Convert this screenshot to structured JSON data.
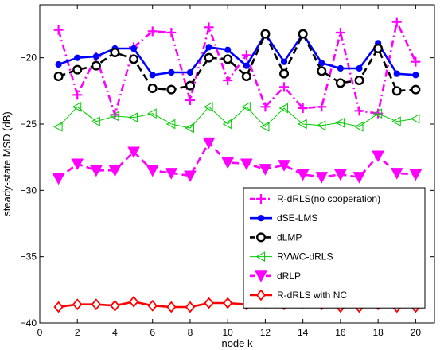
{
  "chart_data": {
    "type": "line",
    "xlabel": "node k",
    "ylabel": "steady-state MSD (dB)",
    "xlim": [
      0,
      21
    ],
    "ylim": [
      -40,
      -16
    ],
    "xticks": [
      0,
      2,
      4,
      6,
      8,
      10,
      12,
      14,
      16,
      18,
      20
    ],
    "yticks": [
      -40,
      -35,
      -30,
      -25,
      -20
    ],
    "grid": false,
    "legend_position": "bottom-right",
    "x": [
      1,
      2,
      3,
      4,
      5,
      6,
      7,
      8,
      9,
      10,
      11,
      12,
      13,
      14,
      15,
      16,
      17,
      18,
      19,
      20
    ],
    "series": [
      {
        "name": "R-dRLS(no cooperation)",
        "color": "#ff00ff",
        "line": "dashdot",
        "marker": "plus",
        "values": [
          -17.9,
          -22.8,
          -19.9,
          -24.3,
          -19.2,
          -18.0,
          -18.1,
          -23.2,
          -17.7,
          -21.7,
          -19.8,
          -23.7,
          -22.2,
          -23.8,
          -23.7,
          -18.1,
          -24.0,
          -24.2,
          -17.3,
          -20.3
        ]
      },
      {
        "name": "dSE-LMS",
        "color": "#0000ff",
        "line": "solid",
        "marker": "dot",
        "values": [
          -20.5,
          -20.0,
          -19.9,
          -19.3,
          -19.3,
          -21.3,
          -21.1,
          -21.1,
          -19.2,
          -19.4,
          -20.6,
          -18.2,
          -20.3,
          -18.2,
          -20.4,
          -20.8,
          -20.8,
          -18.9,
          -21.2,
          -21.3
        ]
      },
      {
        "name": "dLMP",
        "color": "#000000",
        "line": "dashed",
        "marker": "circle",
        "values": [
          -21.4,
          -20.9,
          -20.6,
          -19.6,
          -20.1,
          -22.3,
          -22.4,
          -22.1,
          -20.0,
          -20.1,
          -21.4,
          -18.2,
          -21.2,
          -18.2,
          -21.0,
          -21.9,
          -21.7,
          -19.3,
          -22.5,
          -22.4
        ]
      },
      {
        "name": "RVWC-dRLS",
        "color": "#00cc00",
        "line": "solid",
        "marker": "triangle-left",
        "values": [
          -25.2,
          -23.7,
          -24.8,
          -24.4,
          -24.5,
          -24.2,
          -25.0,
          -25.3,
          -23.7,
          -25.0,
          -23.7,
          -25.2,
          -23.8,
          -25.0,
          -25.1,
          -24.9,
          -25.2,
          -24.2,
          -24.8,
          -24.6
        ]
      },
      {
        "name": "dRLP",
        "color": "#ff00ff",
        "line": "dashed",
        "marker": "triangle-down",
        "values": [
          -29.1,
          -28.0,
          -28.5,
          -28.5,
          -27.1,
          -28.5,
          -28.7,
          -28.9,
          -26.4,
          -27.9,
          -28.0,
          -28.4,
          -28.1,
          -28.8,
          -29.0,
          -28.8,
          -29.0,
          -27.4,
          -28.7,
          -28.8
        ]
      },
      {
        "name": "R-dRLS with NC",
        "color": "#ff0000",
        "line": "solid",
        "marker": "diamond",
        "values": [
          -38.8,
          -38.6,
          -38.6,
          -38.7,
          -38.4,
          -38.7,
          -38.8,
          -38.8,
          -38.5,
          -38.5,
          -38.6,
          -38.5,
          -38.6,
          -38.5,
          -38.6,
          -38.8,
          -38.8,
          -38.6,
          -38.8,
          -38.8
        ]
      }
    ]
  }
}
